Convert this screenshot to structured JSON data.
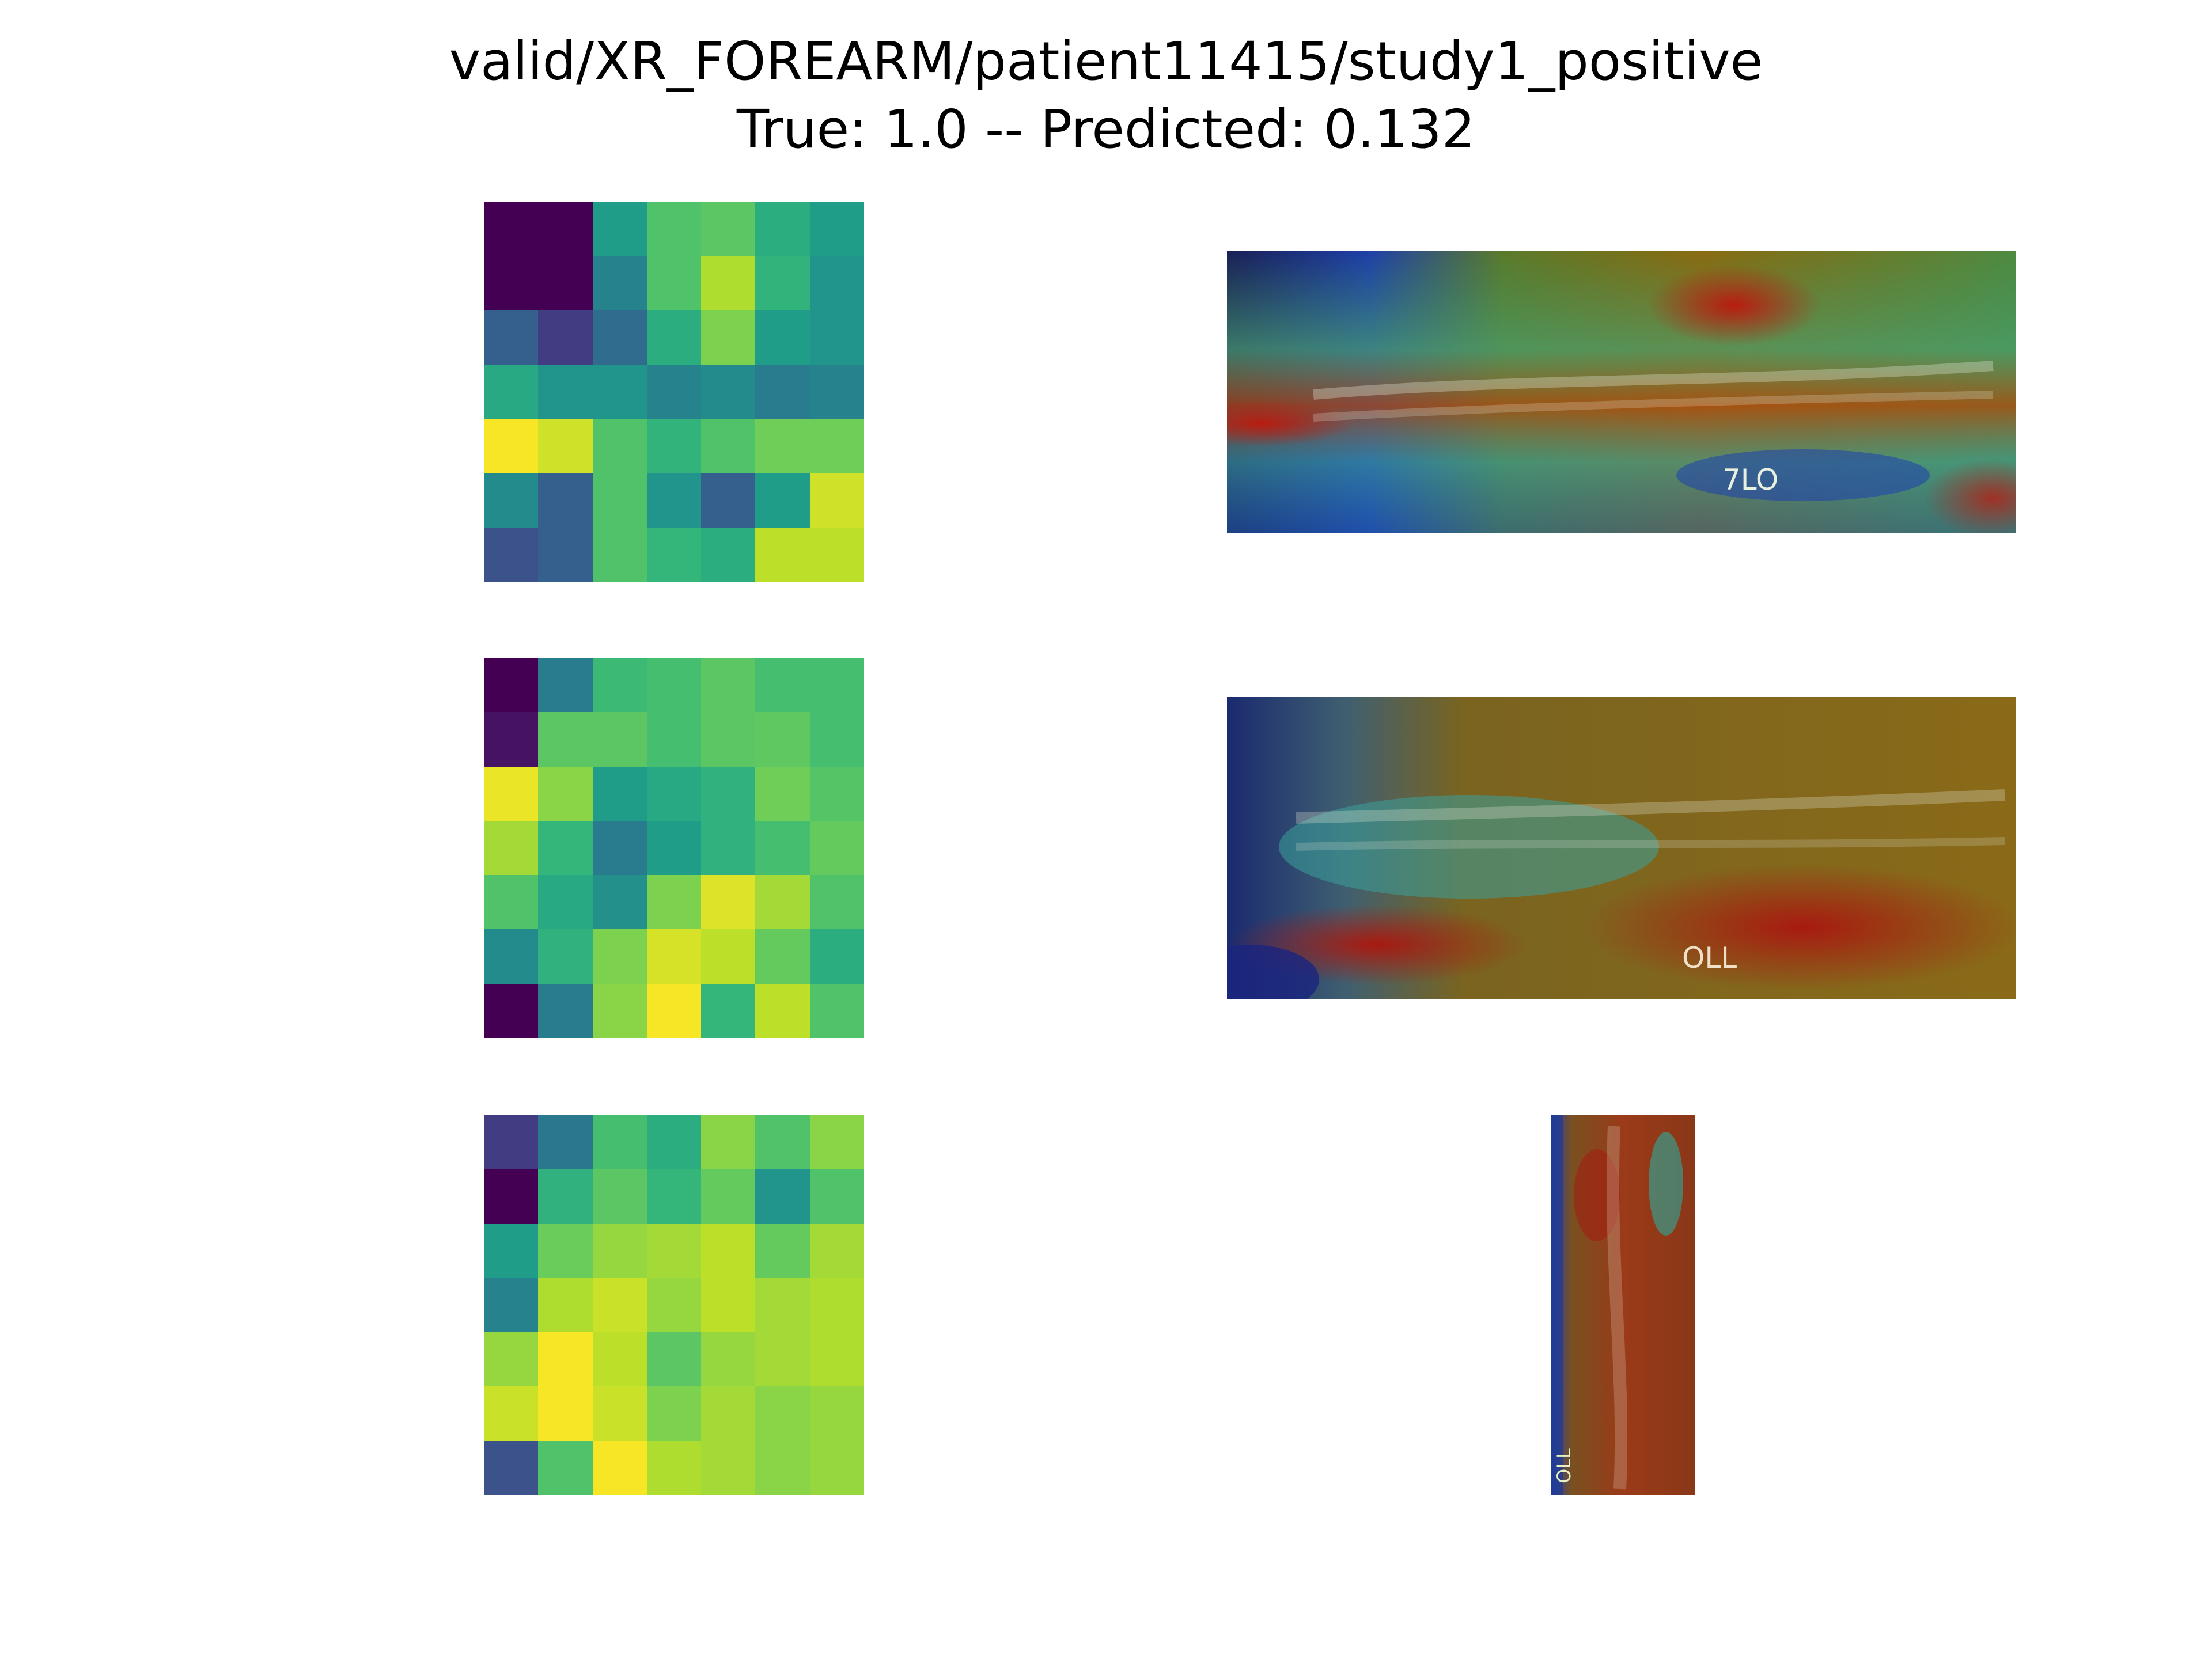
{
  "figure": {
    "title_line1": "valid/XR_FOREARM/patient11415/study1_positive",
    "title_line2": "True: 1.0 -- Predicted: 0.132"
  },
  "chart_data": {
    "type": "heatmap",
    "colormap": "viridis",
    "value_range": [
      0,
      1
    ],
    "grid": false,
    "axes_visible": false,
    "maps": [
      {
        "rows": 7,
        "cols": 7,
        "values": [
          [
            0.0,
            0.0,
            0.55,
            0.72,
            0.74,
            0.62,
            0.55
          ],
          [
            0.0,
            0.0,
            0.45,
            0.72,
            0.88,
            0.65,
            0.52
          ],
          [
            0.3,
            0.18,
            0.35,
            0.62,
            0.8,
            0.55,
            0.52
          ],
          [
            0.6,
            0.52,
            0.52,
            0.45,
            0.48,
            0.42,
            0.45
          ],
          [
            0.99,
            0.93,
            0.72,
            0.65,
            0.72,
            0.78,
            0.78
          ],
          [
            0.48,
            0.3,
            0.72,
            0.52,
            0.3,
            0.55,
            0.93
          ],
          [
            0.25,
            0.3,
            0.72,
            0.66,
            0.62,
            0.9,
            0.9
          ]
        ]
      },
      {
        "rows": 7,
        "cols": 7,
        "values": [
          [
            0.0,
            0.42,
            0.68,
            0.7,
            0.74,
            0.7,
            0.7
          ],
          [
            0.05,
            0.74,
            0.74,
            0.7,
            0.74,
            0.75,
            0.7
          ],
          [
            0.97,
            0.82,
            0.55,
            0.6,
            0.64,
            0.78,
            0.73
          ],
          [
            0.86,
            0.66,
            0.42,
            0.55,
            0.64,
            0.7,
            0.76
          ],
          [
            0.72,
            0.6,
            0.5,
            0.8,
            0.95,
            0.86,
            0.72
          ],
          [
            0.48,
            0.64,
            0.8,
            0.94,
            0.9,
            0.76,
            0.62
          ],
          [
            0.0,
            0.42,
            0.82,
            0.99,
            0.66,
            0.9,
            0.72
          ]
        ]
      },
      {
        "rows": 7,
        "cols": 7,
        "values": [
          [
            0.18,
            0.4,
            0.7,
            0.62,
            0.82,
            0.72,
            0.82
          ],
          [
            0.0,
            0.64,
            0.74,
            0.66,
            0.76,
            0.52,
            0.72
          ],
          [
            0.55,
            0.77,
            0.84,
            0.86,
            0.9,
            0.76,
            0.86
          ],
          [
            0.45,
            0.88,
            0.92,
            0.84,
            0.9,
            0.86,
            0.88
          ],
          [
            0.84,
            0.99,
            0.9,
            0.74,
            0.84,
            0.86,
            0.88
          ],
          [
            0.92,
            0.99,
            0.92,
            0.8,
            0.86,
            0.82,
            0.84
          ],
          [
            0.25,
            0.72,
            0.99,
            0.88,
            0.86,
            0.82,
            0.84
          ]
        ]
      }
    ]
  },
  "overlays": [
    {
      "name": "overlay-forearm-view-1",
      "marker_text": "7LO"
    },
    {
      "name": "overlay-forearm-view-2",
      "marker_text": "OLL"
    },
    {
      "name": "overlay-forearm-view-3",
      "marker_text": "OLL"
    }
  ]
}
